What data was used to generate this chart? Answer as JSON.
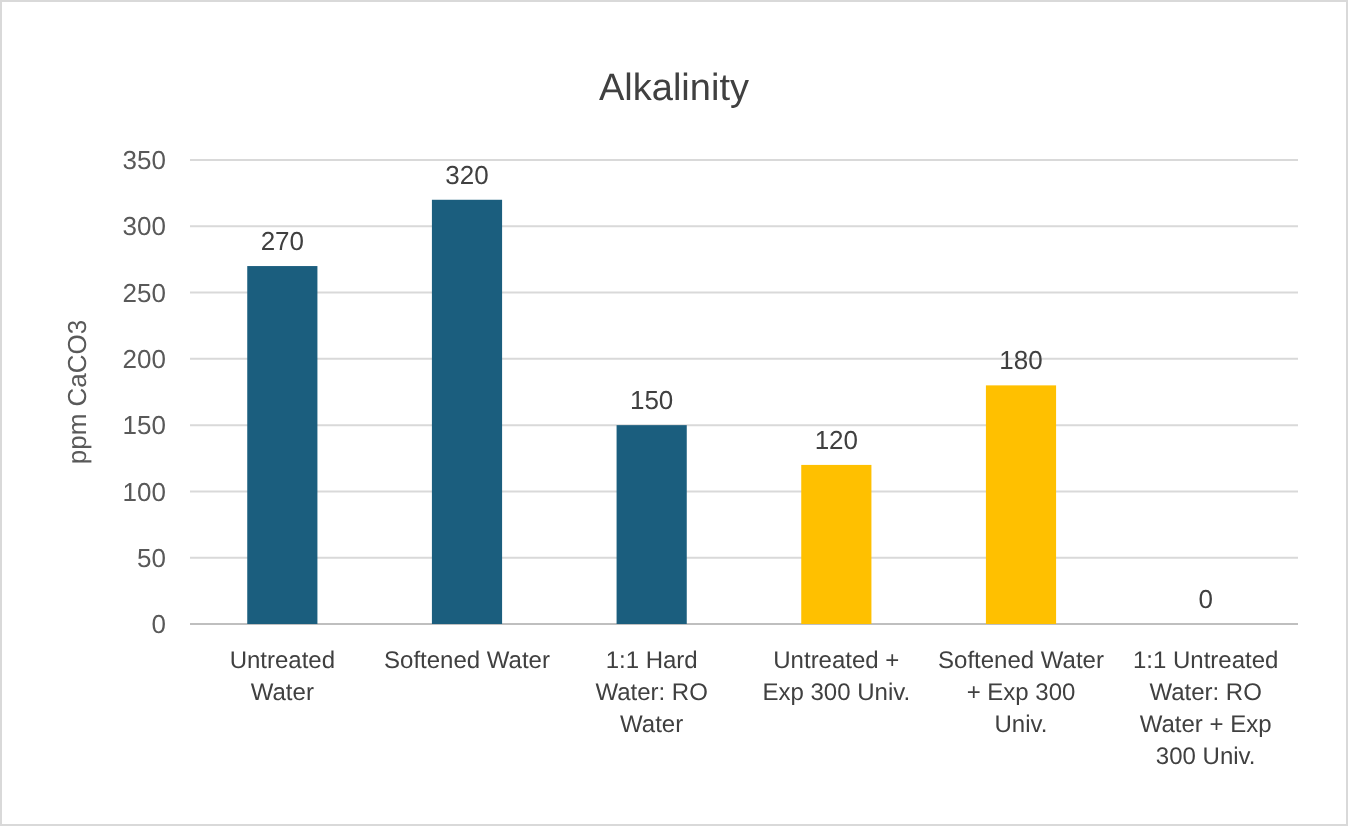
{
  "chart_data": {
    "type": "bar",
    "title": "Alkalinity",
    "ylabel": "ppm CaCO3",
    "categories": [
      "Untreated Water",
      "Softened Water",
      "1:1 Hard Water: RO Water",
      "Untreated + Exp 300 Univ.",
      "Softened Water + Exp 300 Univ.",
      "1:1 Untreated Water: RO Water + Exp 300 Univ."
    ],
    "values": [
      270,
      320,
      150,
      120,
      180,
      0
    ],
    "colors": [
      "#1b5e7e",
      "#1b5e7e",
      "#1b5e7e",
      "#ffc000",
      "#ffc000",
      "#ffc000"
    ],
    "ylim": [
      0,
      350
    ],
    "yticks": [
      0,
      50,
      100,
      150,
      200,
      250,
      300,
      350
    ],
    "grid": "y",
    "data_labels": true
  }
}
